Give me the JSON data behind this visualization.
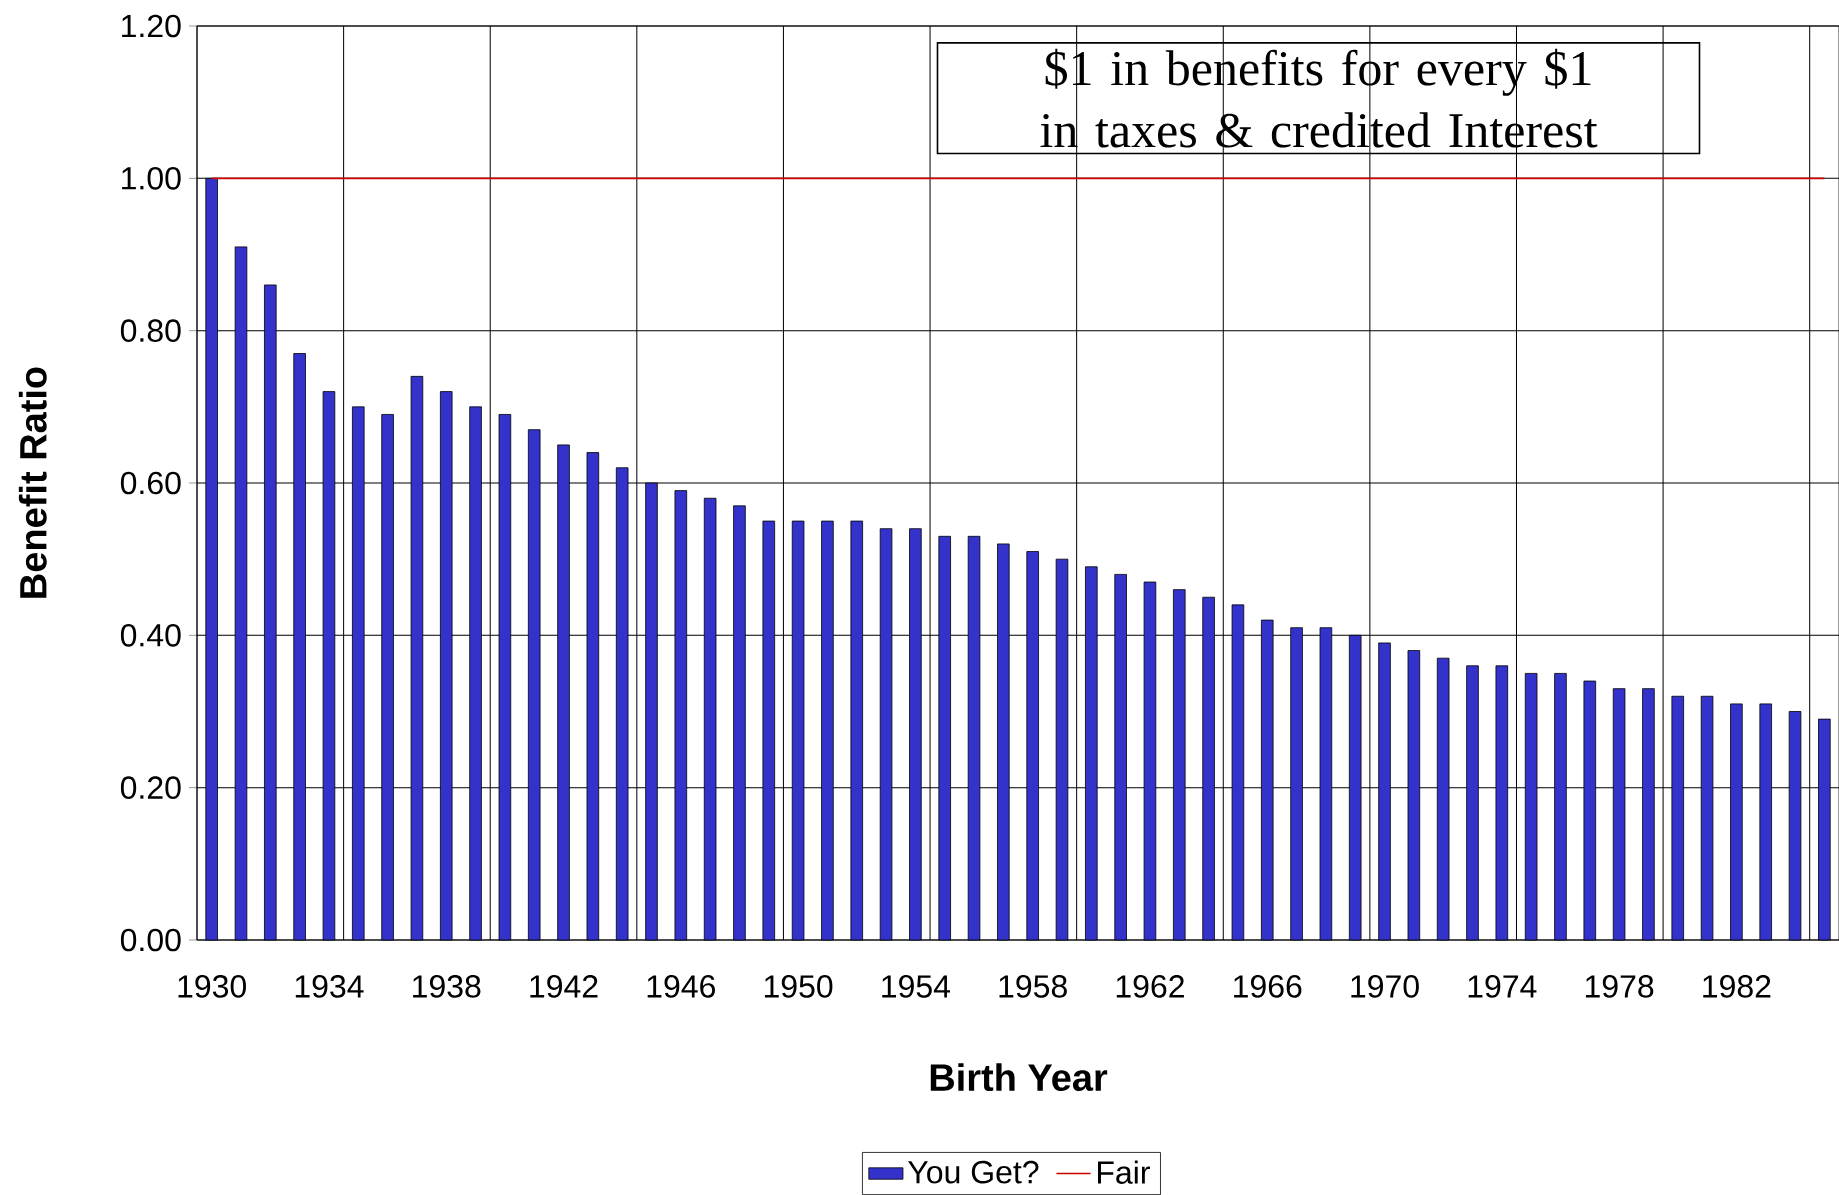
{
  "chart_data": {
    "type": "bar",
    "xlabel": "Birth Year",
    "ylabel": "Benefit Ratio",
    "categories": [
      "1930",
      null,
      null,
      null,
      "1934",
      null,
      null,
      null,
      "1938",
      null,
      null,
      null,
      "1942",
      null,
      null,
      null,
      "1946",
      null,
      null,
      null,
      "1950",
      null,
      null,
      null,
      "1954",
      null,
      null,
      null,
      "1958",
      null,
      null,
      null,
      "1962",
      null,
      null,
      null,
      "1966",
      null,
      null,
      null,
      "1970",
      null,
      null,
      null,
      "1974",
      null,
      null,
      null,
      "1978",
      null,
      null,
      null,
      "1982",
      null,
      null,
      null
    ],
    "series": [
      {
        "name": "You Get?",
        "color": "#3333cc",
        "values": [
          1.0,
          0.91,
          0.86,
          0.77,
          0.72,
          0.7,
          0.69,
          0.74,
          0.72,
          0.7,
          0.69,
          0.67,
          0.65,
          0.64,
          0.62,
          0.6,
          0.59,
          0.58,
          0.57,
          0.55,
          0.55,
          0.55,
          0.55,
          0.54,
          0.54,
          0.53,
          0.53,
          0.52,
          0.51,
          0.5,
          0.49,
          0.48,
          0.47,
          0.46,
          0.45,
          0.44,
          0.42,
          0.41,
          0.41,
          0.4,
          0.39,
          0.38,
          0.37,
          0.36,
          0.36,
          0.35,
          0.35,
          0.34,
          0.33,
          0.33,
          0.32,
          0.32,
          0.31,
          0.31,
          0.3,
          0.29
        ]
      },
      {
        "name": "Fair",
        "type": "line",
        "color": "#cc0000",
        "values": [
          1,
          1,
          1,
          1,
          1,
          1,
          1,
          1,
          1,
          1,
          1,
          1,
          1,
          1,
          1,
          1,
          1,
          1,
          1,
          1,
          1,
          1,
          1,
          1,
          1,
          1,
          1,
          1,
          1,
          1,
          1,
          1,
          1,
          1,
          1,
          1,
          1,
          1,
          1,
          1,
          1,
          1,
          1,
          1,
          1,
          1,
          1,
          1,
          1,
          1,
          1,
          1,
          1,
          1,
          1,
          1
        ]
      }
    ],
    "ylim": [
      0,
      1.2
    ],
    "yticks": [
      {
        "value": 0,
        "label": "0.00"
      },
      {
        "value": 0.2,
        "label": "0.20"
      },
      {
        "value": 0.4,
        "label": "0.40"
      },
      {
        "value": 0.6,
        "label": "0.60"
      },
      {
        "value": 0.8,
        "label": "0.80"
      },
      {
        "value": 1.0,
        "label": "1.00"
      },
      {
        "value": 1.2,
        "label": "1.20"
      }
    ],
    "grid": true,
    "legend": "bottom",
    "annotations": [
      "$1 in benefits for every $1 in taxes & credited Interest"
    ]
  }
}
